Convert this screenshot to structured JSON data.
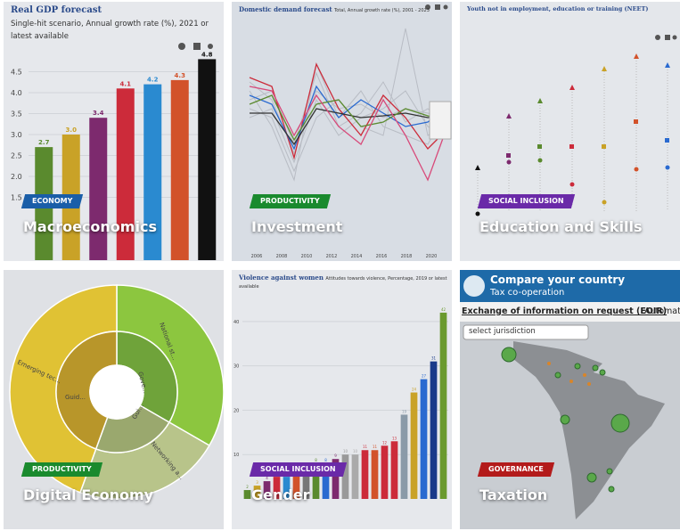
{
  "tiles": [
    {
      "tag": "ECONOMY",
      "tag_color": "#1a5ea8",
      "title": "Macroeconomics",
      "chart": {
        "title": "Real GDP forecast",
        "subtitle": "Single-hit scenario, Annual growth rate (%), 2021 or latest available",
        "values": [
          2.7,
          3.0,
          3.4,
          4.1,
          4.2,
          4.3,
          4.8
        ],
        "value_labels": [
          "2.7",
          "3.0",
          "3.4",
          "4.1",
          "4.2",
          "4.3",
          "4.8"
        ],
        "colors": [
          "#5a8a2e",
          "#c9a227",
          "#7d2a6e",
          "#cc2b3a",
          "#2a8ad0",
          "#d2522a",
          "#111111"
        ],
        "ylim": [
          0,
          5
        ],
        "yticks": [
          {
            "value": 1.5,
            "label": "1.5"
          },
          {
            "value": 2,
            "label": "2.0"
          },
          {
            "value": 2.5,
            "label": "2.5"
          },
          {
            "value": 3,
            "label": "3.0"
          },
          {
            "value": 3.5,
            "label": "3.5"
          },
          {
            "value": 4,
            "label": "4.0"
          },
          {
            "value": 4.5,
            "label": "4.5"
          }
        ]
      }
    },
    {
      "tag": "PRODUCTIVITY",
      "tag_color": "#1a8a2e",
      "title": "Investment",
      "chart": {
        "title": "Domestic demand forecast",
        "subtitle": "Total, Annual growth rate (%), 2001 - 2023",
        "xlabels": [
          "2006",
          "2008",
          "2010",
          "2012",
          "2014",
          "2016",
          "2018",
          "2020"
        ]
      }
    },
    {
      "tag": "SOCIAL INCLUSION",
      "tag_color": "#6a2aa8",
      "title": "Education and Skills",
      "chart": {
        "title": "Youth not in employment, education or training (NEET)"
      }
    },
    {
      "tag": "PRODUCTIVITY",
      "tag_color": "#1a8a2e",
      "title": "Digital Economy",
      "chart": {
        "labels": [
          "Emerging tec...",
          "National st...",
          "Guid...",
          "Gove...",
          "Gui...",
          "Networking a..."
        ]
      }
    },
    {
      "tag": "SOCIAL INCLUSION",
      "tag_color": "#6a2aa8",
      "title": "Gender",
      "chart": {
        "title": "Violence against women",
        "subtitle": "Attitudes towards violence, Percentage, 2019 or latest available",
        "values": [
          2,
          3,
          4,
          5,
          5,
          6,
          7,
          8,
          8,
          9,
          10,
          10,
          11,
          11,
          12,
          13,
          19,
          24,
          27,
          31,
          42
        ],
        "colors": [
          "#5a8a2e",
          "#c9a227",
          "#7d2a6e",
          "#cc2b3a",
          "#2a8ad0",
          "#d2522a",
          "#777777",
          "#5a8a2e",
          "#2a6ad0",
          "#7d2a6e",
          "#999999",
          "#aaaaaa",
          "#cc2b3a",
          "#d2522a",
          "#cc2b3a",
          "#cc2b3a",
          "#8a9aa8",
          "#c9a227",
          "#2a6ad0",
          "#1a3a8a",
          "#6a9a2e"
        ],
        "ylim": [
          0,
          46
        ],
        "yticks": [
          10,
          20,
          30,
          40
        ]
      }
    },
    {
      "tag": "GOVERNANCE",
      "tag_color": "#b31b1b",
      "title": "Taxation",
      "chart": {
        "title": "Compare your country",
        "subtitle": "Tax co-operation",
        "tab": "Exchange of information on request (EOIR)",
        "tab2": "Automat",
        "select": "select jurisdiction"
      }
    }
  ]
}
